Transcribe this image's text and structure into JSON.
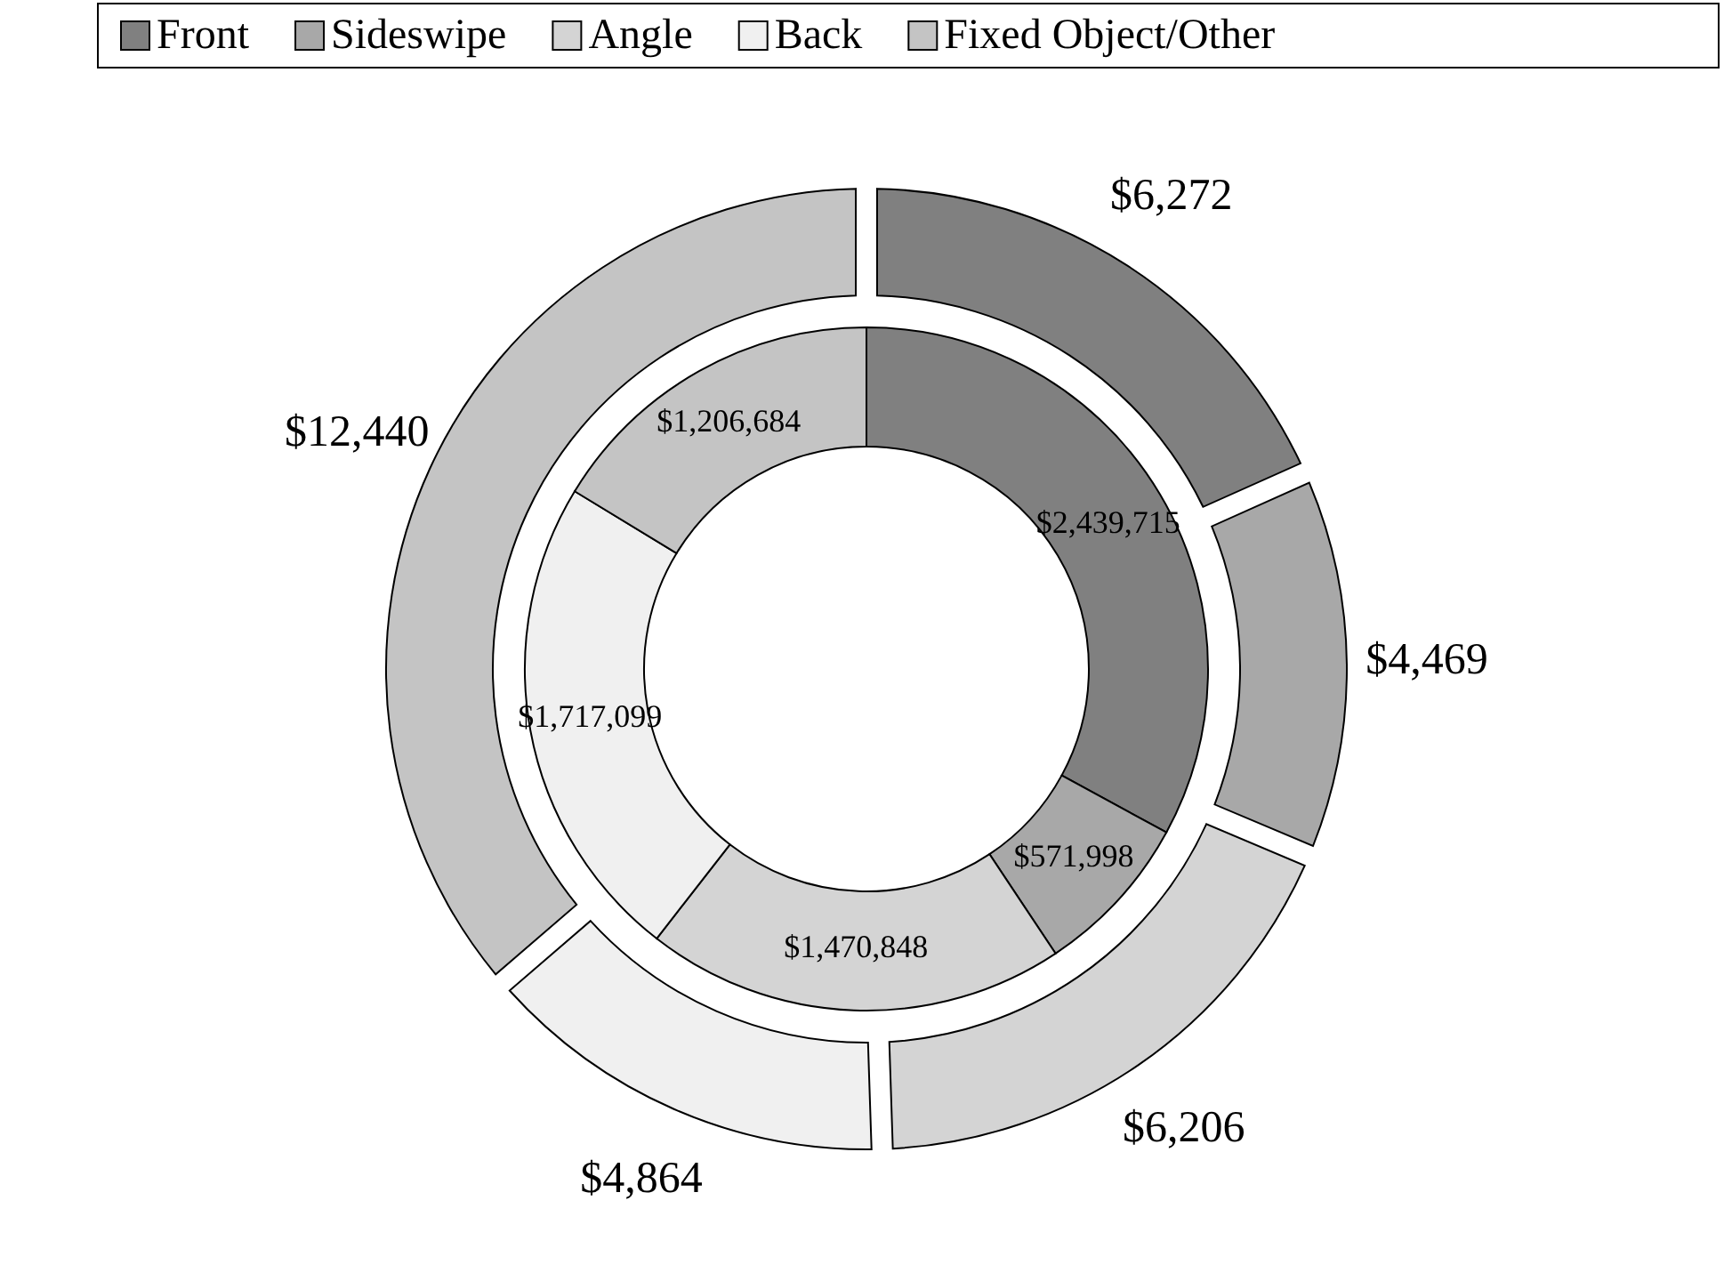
{
  "chart_data": {
    "type": "donut",
    "categories": [
      "Front",
      "Sideswipe",
      "Angle",
      "Back",
      "Fixed Object/Other"
    ],
    "colors": [
      "#808080",
      "#a8a8a8",
      "#d4d4d4",
      "#f0f0f0",
      "#c4c4c4"
    ],
    "series": [
      {
        "values": [
          2439715,
          571998,
          1470848,
          1717099,
          1206684
        ],
        "value_labels": [
          "$2,439,715",
          "$571,998",
          "$1,470,848",
          "$1,717,099",
          "$1,206,684"
        ]
      },
      {
        "values": [
          6272,
          4469,
          6206,
          4864,
          12440
        ],
        "value_labels": [
          "$6,272",
          "$4,469",
          "$6,206",
          "$4,864",
          "$12,440"
        ]
      }
    ],
    "legend": "top"
  }
}
